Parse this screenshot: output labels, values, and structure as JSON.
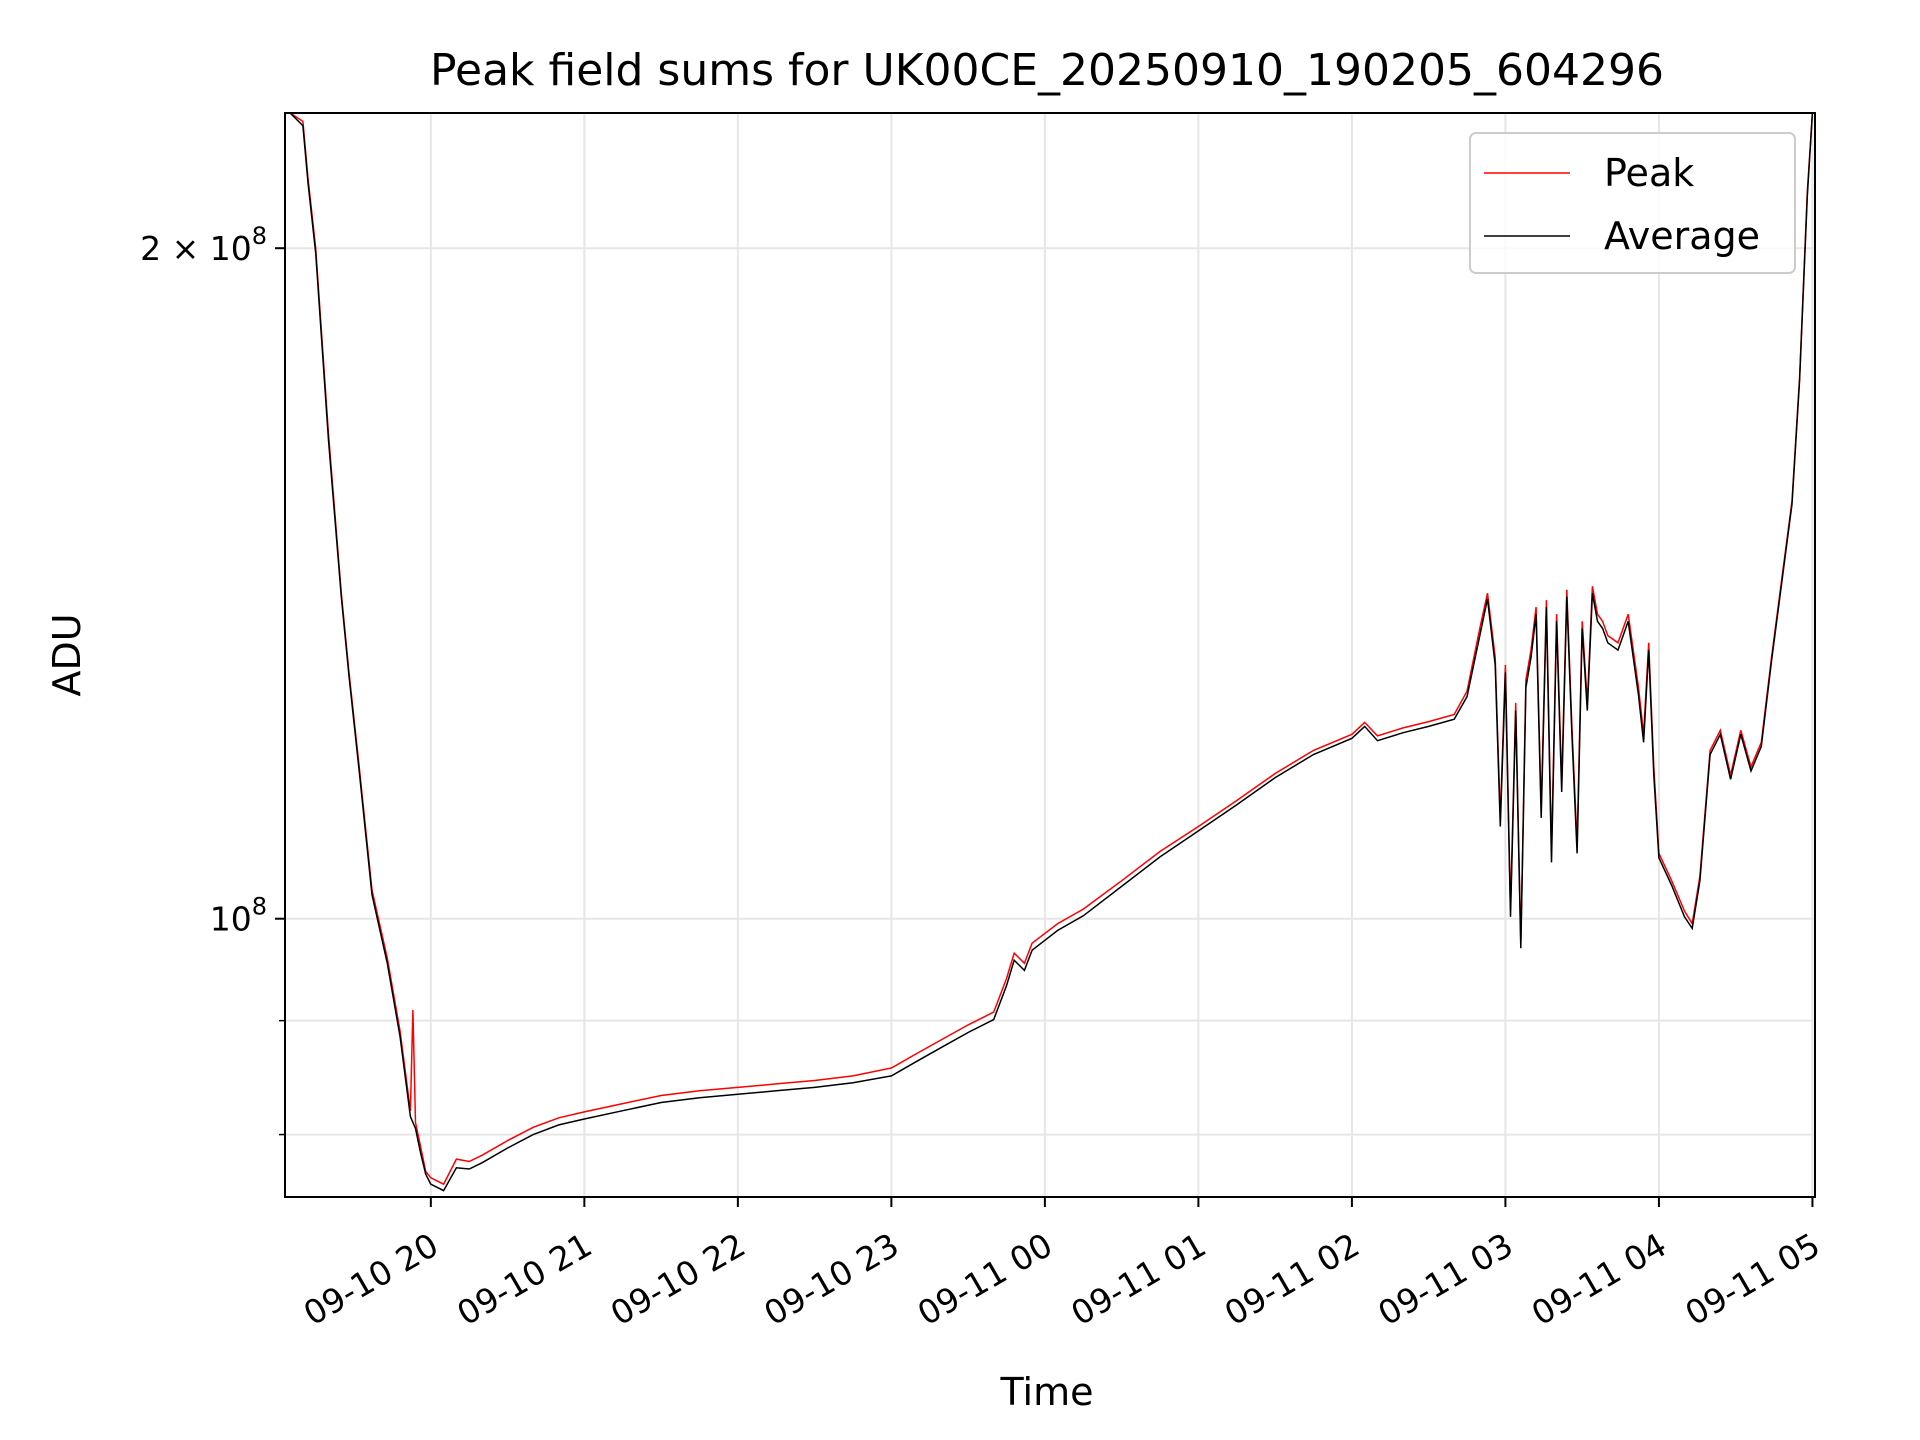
{
  "chart_data": {
    "type": "line",
    "title": "Peak field sums for UK00CE_20250910_190205_604296",
    "xlabel": "Time",
    "ylabel": "ADU",
    "y_scale": "log",
    "x_range": [
      "2025-09-10 19:03",
      "2025-09-11 05:01"
    ],
    "ylim": [
      75000000,
      230000000
    ],
    "x_ticks": [
      {
        "t": "2025-09-10 20:00",
        "label": "09-10 20"
      },
      {
        "t": "2025-09-10 21:00",
        "label": "09-10 21"
      },
      {
        "t": "2025-09-10 22:00",
        "label": "09-10 22"
      },
      {
        "t": "2025-09-10 23:00",
        "label": "09-10 23"
      },
      {
        "t": "2025-09-11 00:00",
        "label": "09-11 00"
      },
      {
        "t": "2025-09-11 01:00",
        "label": "09-11 01"
      },
      {
        "t": "2025-09-11 02:00",
        "label": "09-11 02"
      },
      {
        "t": "2025-09-11 03:00",
        "label": "09-11 03"
      },
      {
        "t": "2025-09-11 04:00",
        "label": "09-11 04"
      },
      {
        "t": "2025-09-11 05:00",
        "label": "09-11 05"
      }
    ],
    "y_major_ticks": [
      {
        "value": 100000000,
        "base": "10",
        "exp": "8",
        "prefix": ""
      },
      {
        "value": 200000000,
        "base": "10",
        "exp": "8",
        "prefix": "2 × "
      }
    ],
    "y_minor_ticks": [
      80000000,
      90000000
    ],
    "grid": true,
    "legend": "top-right",
    "series": [
      {
        "name": "Peak",
        "color": "#ff0000",
        "points": [
          [
            "2025-09-10 19:05",
            230000000
          ],
          [
            "2025-09-10 19:10",
            228000000
          ],
          [
            "2025-09-10 19:12",
            215000000
          ],
          [
            "2025-09-10 19:15",
            200000000
          ],
          [
            "2025-09-10 19:20",
            165000000
          ],
          [
            "2025-09-10 19:25",
            140000000
          ],
          [
            "2025-09-10 19:28",
            129000000
          ],
          [
            "2025-09-10 19:32",
            117000000
          ],
          [
            "2025-09-10 19:37",
            103000000
          ],
          [
            "2025-09-10 19:43",
            96000000
          ],
          [
            "2025-09-10 19:48",
            89000000
          ],
          [
            "2025-09-10 19:52",
            82000000
          ],
          [
            "2025-09-10 19:53",
            91000000
          ],
          [
            "2025-09-10 19:54",
            81000000
          ],
          [
            "2025-09-10 19:56",
            79000000
          ],
          [
            "2025-09-10 19:58",
            77000000
          ],
          [
            "2025-09-10 20:00",
            76500000
          ],
          [
            "2025-09-10 20:05",
            76000000
          ],
          [
            "2025-09-10 20:10",
            78000000
          ],
          [
            "2025-09-10 20:15",
            77800000
          ],
          [
            "2025-09-10 20:20",
            78300000
          ],
          [
            "2025-09-10 20:30",
            79500000
          ],
          [
            "2025-09-10 20:40",
            80600000
          ],
          [
            "2025-09-10 20:50",
            81400000
          ],
          [
            "2025-09-10 21:00",
            81900000
          ],
          [
            "2025-09-10 21:15",
            82600000
          ],
          [
            "2025-09-10 21:30",
            83300000
          ],
          [
            "2025-09-10 21:45",
            83700000
          ],
          [
            "2025-09-10 22:00",
            84000000
          ],
          [
            "2025-09-10 22:15",
            84300000
          ],
          [
            "2025-09-10 22:30",
            84600000
          ],
          [
            "2025-09-10 22:45",
            85000000
          ],
          [
            "2025-09-10 23:00",
            85700000
          ],
          [
            "2025-09-10 23:10",
            87000000
          ],
          [
            "2025-09-10 23:20",
            88300000
          ],
          [
            "2025-09-10 23:30",
            89600000
          ],
          [
            "2025-09-10 23:40",
            90800000
          ],
          [
            "2025-09-10 23:45",
            94000000
          ],
          [
            "2025-09-10 23:48",
            96500000
          ],
          [
            "2025-09-10 23:52",
            95500000
          ],
          [
            "2025-09-10 23:55",
            97500000
          ],
          [
            "2025-09-11 00:05",
            99500000
          ],
          [
            "2025-09-11 00:15",
            101000000
          ],
          [
            "2025-09-11 00:30",
            104000000
          ],
          [
            "2025-09-11 00:45",
            107200000
          ],
          [
            "2025-09-11 01:00",
            110000000
          ],
          [
            "2025-09-11 01:15",
            113000000
          ],
          [
            "2025-09-11 01:30",
            116200000
          ],
          [
            "2025-09-11 01:45",
            119000000
          ],
          [
            "2025-09-11 02:00",
            121000000
          ],
          [
            "2025-09-11 02:05",
            122500000
          ],
          [
            "2025-09-11 02:10",
            120800000
          ],
          [
            "2025-09-11 02:20",
            121800000
          ],
          [
            "2025-09-11 02:30",
            122600000
          ],
          [
            "2025-09-11 02:40",
            123500000
          ],
          [
            "2025-09-11 02:45",
            126500000
          ],
          [
            "2025-09-11 02:50",
            135000000
          ],
          [
            "2025-09-11 02:53",
            140000000
          ],
          [
            "2025-09-11 02:56",
            131000000
          ],
          [
            "2025-09-11 02:58",
            111000000
          ],
          [
            "2025-09-11 03:00",
            130000000
          ],
          [
            "2025-09-11 03:02",
            101000000
          ],
          [
            "2025-09-11 03:04",
            125000000
          ],
          [
            "2025-09-11 03:06",
            97500000
          ],
          [
            "2025-09-11 03:08",
            128000000
          ],
          [
            "2025-09-11 03:10",
            132000000
          ],
          [
            "2025-09-11 03:12",
            138000000
          ],
          [
            "2025-09-11 03:14",
            112000000
          ],
          [
            "2025-09-11 03:16",
            139000000
          ],
          [
            "2025-09-11 03:18",
            107000000
          ],
          [
            "2025-09-11 03:20",
            137000000
          ],
          [
            "2025-09-11 03:22",
            115000000
          ],
          [
            "2025-09-11 03:24",
            140500000
          ],
          [
            "2025-09-11 03:26",
            122000000
          ],
          [
            "2025-09-11 03:28",
            108000000
          ],
          [
            "2025-09-11 03:30",
            136000000
          ],
          [
            "2025-09-11 03:32",
            125000000
          ],
          [
            "2025-09-11 03:34",
            141000000
          ],
          [
            "2025-09-11 03:36",
            137000000
          ],
          [
            "2025-09-11 03:38",
            136000000
          ],
          [
            "2025-09-11 03:40",
            134000000
          ],
          [
            "2025-09-11 03:44",
            133000000
          ],
          [
            "2025-09-11 03:48",
            137000000
          ],
          [
            "2025-09-11 03:52",
            127000000
          ],
          [
            "2025-09-11 03:54",
            121000000
          ],
          [
            "2025-09-11 03:56",
            133000000
          ],
          [
            "2025-09-11 03:58",
            117000000
          ],
          [
            "2025-09-11 04:00",
            107000000
          ],
          [
            "2025-09-11 04:05",
            104000000
          ],
          [
            "2025-09-11 04:10",
            100800000
          ],
          [
            "2025-09-11 04:13",
            99500000
          ],
          [
            "2025-09-11 04:16",
            104500000
          ],
          [
            "2025-09-11 04:20",
            119000000
          ],
          [
            "2025-09-11 04:24",
            121500000
          ],
          [
            "2025-09-11 04:28",
            116000000
          ],
          [
            "2025-09-11 04:32",
            121500000
          ],
          [
            "2025-09-11 04:36",
            117000000
          ],
          [
            "2025-09-11 04:40",
            120000000
          ],
          [
            "2025-09-11 04:44",
            131000000
          ],
          [
            "2025-09-11 04:48",
            142000000
          ],
          [
            "2025-09-11 04:52",
            154000000
          ],
          [
            "2025-09-11 04:55",
            175000000
          ],
          [
            "2025-09-11 04:58",
            212000000
          ],
          [
            "2025-09-11 05:00",
            230000000
          ]
        ]
      },
      {
        "name": "Average",
        "color": "#000000",
        "points": [
          [
            "2025-09-10 19:05",
            230000000
          ],
          [
            "2025-09-10 19:10",
            227000000
          ],
          [
            "2025-09-10 19:12",
            214000000
          ],
          [
            "2025-09-10 19:15",
            199000000
          ],
          [
            "2025-09-10 19:20",
            164000000
          ],
          [
            "2025-09-10 19:25",
            139500000
          ],
          [
            "2025-09-10 19:28",
            128500000
          ],
          [
            "2025-09-10 19:32",
            116500000
          ],
          [
            "2025-09-10 19:37",
            102500000
          ],
          [
            "2025-09-10 19:43",
            95500000
          ],
          [
            "2025-09-10 19:48",
            88500000
          ],
          [
            "2025-09-10 19:52",
            81500000
          ],
          [
            "2025-09-10 19:54",
            80500000
          ],
          [
            "2025-09-10 19:56",
            78500000
          ],
          [
            "2025-09-10 19:58",
            76800000
          ],
          [
            "2025-09-10 20:00",
            76000000
          ],
          [
            "2025-09-10 20:05",
            75500000
          ],
          [
            "2025-09-10 20:10",
            77300000
          ],
          [
            "2025-09-10 20:15",
            77200000
          ],
          [
            "2025-09-10 20:20",
            77700000
          ],
          [
            "2025-09-10 20:30",
            78900000
          ],
          [
            "2025-09-10 20:40",
            80000000
          ],
          [
            "2025-09-10 20:50",
            80800000
          ],
          [
            "2025-09-10 21:00",
            81300000
          ],
          [
            "2025-09-10 21:15",
            82000000
          ],
          [
            "2025-09-10 21:30",
            82700000
          ],
          [
            "2025-09-10 21:45",
            83100000
          ],
          [
            "2025-09-10 22:00",
            83400000
          ],
          [
            "2025-09-10 22:15",
            83700000
          ],
          [
            "2025-09-10 22:30",
            84000000
          ],
          [
            "2025-09-10 22:45",
            84400000
          ],
          [
            "2025-09-10 23:00",
            85000000
          ],
          [
            "2025-09-10 23:10",
            86300000
          ],
          [
            "2025-09-10 23:20",
            87600000
          ],
          [
            "2025-09-10 23:30",
            88900000
          ],
          [
            "2025-09-10 23:40",
            90100000
          ],
          [
            "2025-09-10 23:45",
            93300000
          ],
          [
            "2025-09-10 23:48",
            95800000
          ],
          [
            "2025-09-10 23:52",
            94800000
          ],
          [
            "2025-09-10 23:55",
            96800000
          ],
          [
            "2025-09-11 00:05",
            98800000
          ],
          [
            "2025-09-11 00:15",
            100300000
          ],
          [
            "2025-09-11 00:30",
            103400000
          ],
          [
            "2025-09-11 00:45",
            106600000
          ],
          [
            "2025-09-11 01:00",
            109500000
          ],
          [
            "2025-09-11 01:15",
            112500000
          ],
          [
            "2025-09-11 01:30",
            115700000
          ],
          [
            "2025-09-11 01:45",
            118500000
          ],
          [
            "2025-09-11 02:00",
            120500000
          ],
          [
            "2025-09-11 02:05",
            122000000
          ],
          [
            "2025-09-11 02:10",
            120200000
          ],
          [
            "2025-09-11 02:20",
            121200000
          ],
          [
            "2025-09-11 02:30",
            122000000
          ],
          [
            "2025-09-11 02:40",
            122900000
          ],
          [
            "2025-09-11 02:45",
            125800000
          ],
          [
            "2025-09-11 02:50",
            134000000
          ],
          [
            "2025-09-11 02:53",
            139200000
          ],
          [
            "2025-09-11 02:56",
            130000000
          ],
          [
            "2025-09-11 02:58",
            110000000
          ],
          [
            "2025-09-11 03:00",
            129000000
          ],
          [
            "2025-09-11 03:02",
            100200000
          ],
          [
            "2025-09-11 03:04",
            124000000
          ],
          [
            "2025-09-11 03:06",
            97000000
          ],
          [
            "2025-09-11 03:08",
            127000000
          ],
          [
            "2025-09-11 03:10",
            131000000
          ],
          [
            "2025-09-11 03:12",
            137000000
          ],
          [
            "2025-09-11 03:14",
            111000000
          ],
          [
            "2025-09-11 03:16",
            138000000
          ],
          [
            "2025-09-11 03:18",
            106000000
          ],
          [
            "2025-09-11 03:20",
            136000000
          ],
          [
            "2025-09-11 03:22",
            114000000
          ],
          [
            "2025-09-11 03:24",
            139500000
          ],
          [
            "2025-09-11 03:26",
            121000000
          ],
          [
            "2025-09-11 03:28",
            107000000
          ],
          [
            "2025-09-11 03:30",
            135000000
          ],
          [
            "2025-09-11 03:32",
            124000000
          ],
          [
            "2025-09-11 03:34",
            140000000
          ],
          [
            "2025-09-11 03:36",
            136000000
          ],
          [
            "2025-09-11 03:38",
            135000000
          ],
          [
            "2025-09-11 03:40",
            133000000
          ],
          [
            "2025-09-11 03:44",
            132000000
          ],
          [
            "2025-09-11 03:48",
            136000000
          ],
          [
            "2025-09-11 03:52",
            126000000
          ],
          [
            "2025-09-11 03:54",
            120000000
          ],
          [
            "2025-09-11 03:56",
            132000000
          ],
          [
            "2025-09-11 03:58",
            116000000
          ],
          [
            "2025-09-11 04:00",
            106500000
          ],
          [
            "2025-09-11 04:05",
            103500000
          ],
          [
            "2025-09-11 04:10",
            100200000
          ],
          [
            "2025-09-11 04:13",
            99000000
          ],
          [
            "2025-09-11 04:16",
            104000000
          ],
          [
            "2025-09-11 04:20",
            118500000
          ],
          [
            "2025-09-11 04:24",
            121000000
          ],
          [
            "2025-09-11 04:28",
            115500000
          ],
          [
            "2025-09-11 04:32",
            121000000
          ],
          [
            "2025-09-11 04:36",
            116500000
          ],
          [
            "2025-09-11 04:40",
            119500000
          ],
          [
            "2025-09-11 04:44",
            130500000
          ],
          [
            "2025-09-11 04:48",
            141500000
          ],
          [
            "2025-09-11 04:52",
            153500000
          ],
          [
            "2025-09-11 04:55",
            174500000
          ],
          [
            "2025-09-11 04:58",
            211000000
          ],
          [
            "2025-09-11 05:00",
            230000000
          ]
        ]
      }
    ]
  }
}
